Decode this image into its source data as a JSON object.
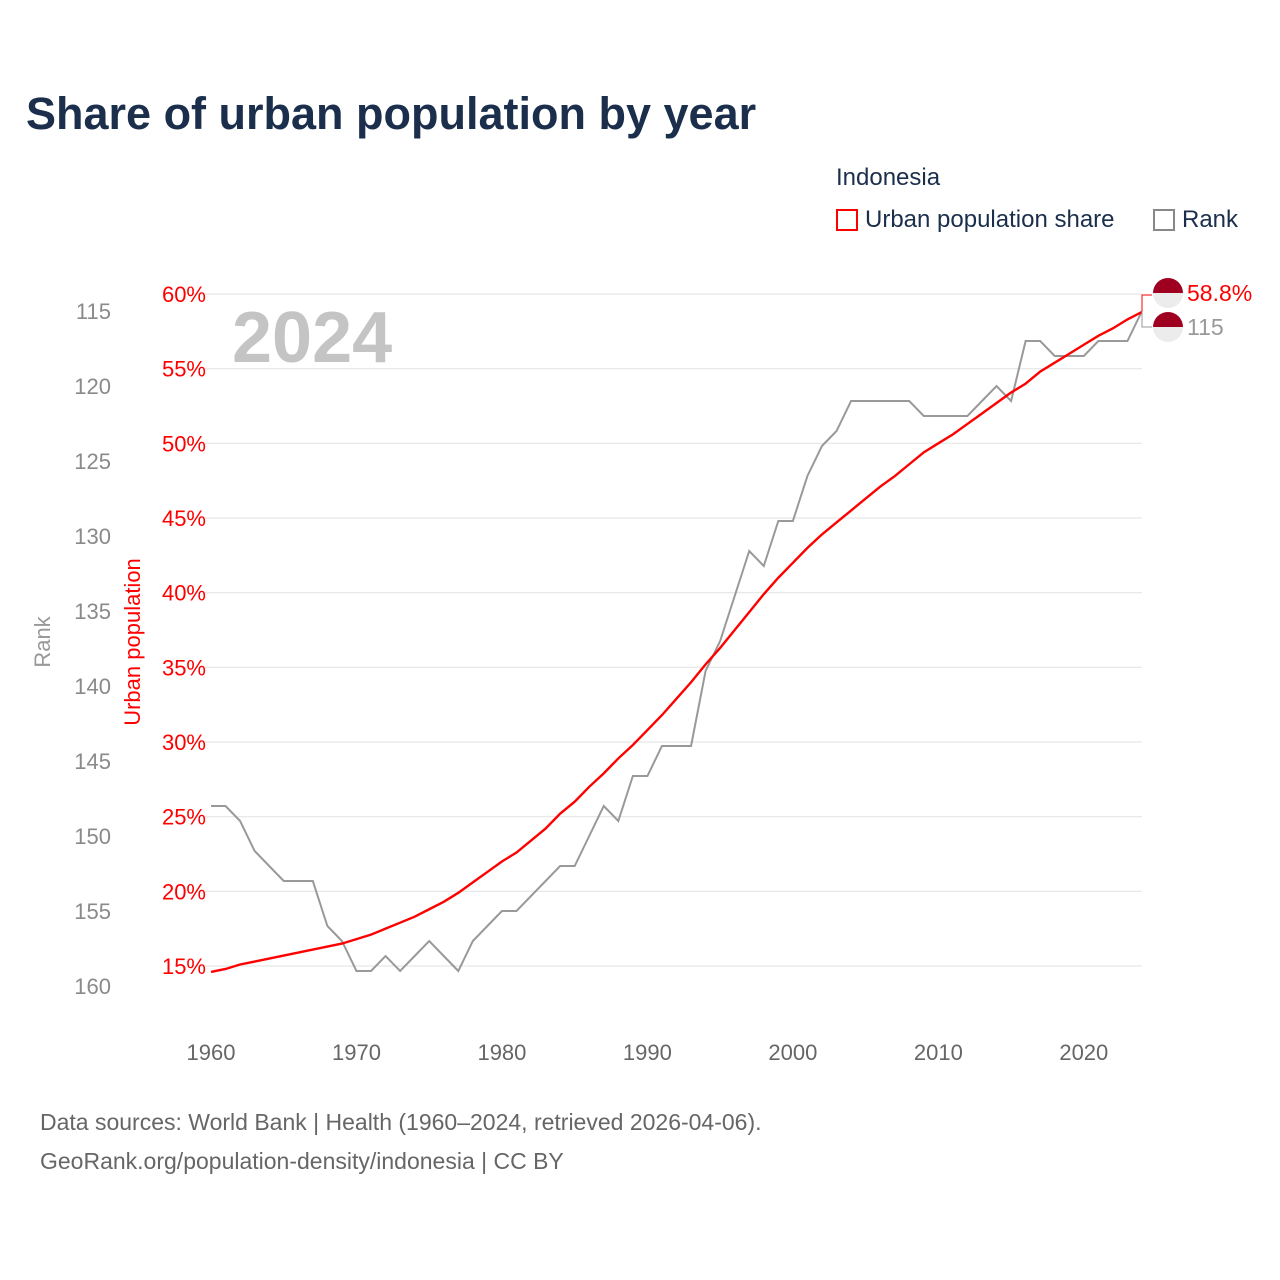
{
  "title": "Share of urban population by year",
  "legend": {
    "title": "Indonesia",
    "items": [
      {
        "label": "Urban population share",
        "color": "#ff0000"
      },
      {
        "label": "Rank",
        "color": "#888888"
      }
    ]
  },
  "footer": {
    "line1": "Data sources: World Bank | Health (1960–2024, retrieved 2026-04-06).",
    "line2": "GeoRank.org/population-density/indonesia | CC BY"
  },
  "chart_data": {
    "type": "line",
    "title": "Share of urban population by year",
    "year_label": "2024",
    "x": [
      1960,
      1961,
      1962,
      1963,
      1964,
      1965,
      1966,
      1967,
      1968,
      1969,
      1970,
      1971,
      1972,
      1973,
      1974,
      1975,
      1976,
      1977,
      1978,
      1979,
      1980,
      1981,
      1982,
      1983,
      1984,
      1985,
      1986,
      1987,
      1988,
      1989,
      1990,
      1991,
      1992,
      1993,
      1994,
      1995,
      1996,
      1997,
      1998,
      1999,
      2000,
      2001,
      2002,
      2003,
      2004,
      2005,
      2006,
      2007,
      2008,
      2009,
      2010,
      2011,
      2012,
      2013,
      2014,
      2015,
      2016,
      2017,
      2018,
      2019,
      2020,
      2021,
      2022,
      2023,
      2024
    ],
    "xticks": [
      "1960",
      "1970",
      "1980",
      "1990",
      "2000",
      "2010",
      "2020"
    ],
    "xlim": [
      1960,
      2024
    ],
    "series": [
      {
        "name": "Urban population share",
        "axis": "left",
        "color": "#ff0000",
        "ylabel": "Urban population",
        "ylim": [
          15,
          60
        ],
        "yticks": [
          "15%",
          "20%",
          "25%",
          "30%",
          "35%",
          "40%",
          "45%",
          "50%",
          "55%",
          "60%"
        ],
        "end_label": "58.8%",
        "values": [
          14.6,
          14.8,
          15.1,
          15.3,
          15.5,
          15.7,
          15.9,
          16.1,
          16.3,
          16.5,
          16.8,
          17.1,
          17.5,
          17.9,
          18.3,
          18.8,
          19.3,
          19.9,
          20.6,
          21.3,
          22.0,
          22.6,
          23.4,
          24.2,
          25.2,
          26.0,
          27.0,
          27.9,
          28.9,
          29.8,
          30.8,
          31.8,
          32.9,
          34.0,
          35.2,
          36.3,
          37.5,
          38.7,
          39.9,
          41.0,
          42.0,
          43.0,
          43.9,
          44.7,
          45.5,
          46.3,
          47.1,
          47.8,
          48.6,
          49.4,
          50.0,
          50.6,
          51.3,
          52.0,
          52.7,
          53.4,
          54.0,
          54.8,
          55.4,
          56.0,
          56.6,
          57.2,
          57.7,
          58.3,
          58.8
        ]
      },
      {
        "name": "Rank",
        "axis": "far-left",
        "color": "#999999",
        "ylabel": "Rank",
        "ylim": [
          115,
          160
        ],
        "inverted": true,
        "yticks": [
          "115",
          "120",
          "125",
          "130",
          "135",
          "140",
          "145",
          "150",
          "155",
          "160"
        ],
        "end_label": "115",
        "values": [
          148,
          148,
          149,
          151,
          152,
          153,
          153,
          153,
          156,
          157,
          159,
          159,
          158,
          159,
          158,
          157,
          158,
          159,
          157,
          156,
          155,
          155,
          154,
          153,
          152,
          152,
          150,
          148,
          149,
          146,
          146,
          144,
          144,
          144,
          139,
          137,
          134,
          131,
          132,
          129,
          129,
          126,
          124,
          123,
          121,
          121,
          121,
          121,
          121,
          122,
          122,
          122,
          122,
          121,
          120,
          121,
          117,
          117,
          118,
          118,
          118,
          117,
          117,
          117,
          115
        ]
      }
    ],
    "grid": true,
    "legend_position": "top-right"
  }
}
